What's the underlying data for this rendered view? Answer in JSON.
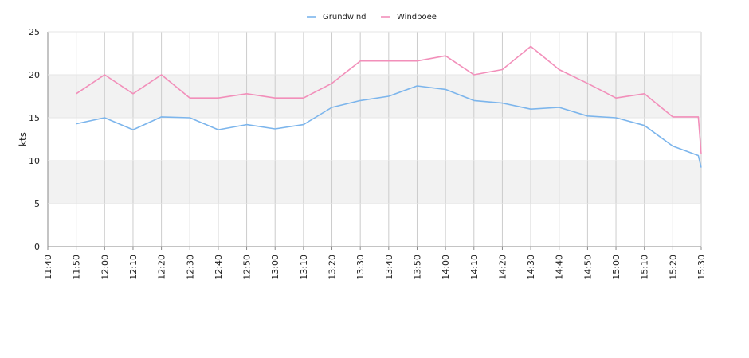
{
  "chart_data": {
    "type": "line",
    "title": "",
    "xlabel": "",
    "ylabel": "kts",
    "ylim": [
      0,
      25
    ],
    "yticks": [
      0,
      5,
      10,
      15,
      20,
      25
    ],
    "xlim": [
      "11:40",
      "15:30"
    ],
    "x_ticks": [
      "11:40",
      "11:50",
      "12:00",
      "12:10",
      "12:20",
      "12:30",
      "12:40",
      "12:50",
      "13:00",
      "13:10",
      "13:20",
      "13:30",
      "13:40",
      "13:50",
      "14:00",
      "14:10",
      "14:20",
      "14:30",
      "14:40",
      "14:50",
      "15:00",
      "15:10",
      "15:20",
      "15:30"
    ],
    "grid": true,
    "legend_position": "top-center",
    "series": [
      {
        "name": "Grundwind",
        "color": "#7cb5ec",
        "x": [
          "11:50",
          "12:00",
          "12:10",
          "12:20",
          "12:30",
          "12:40",
          "12:50",
          "13:00",
          "13:10",
          "13:20",
          "13:30",
          "13:40",
          "13:50",
          "14:00",
          "14:10",
          "14:20",
          "14:30",
          "14:40",
          "14:50",
          "15:00",
          "15:10",
          "15:20",
          "15:29",
          "15:30"
        ],
        "values": [
          14.3,
          15.0,
          13.6,
          15.1,
          15.0,
          13.6,
          14.2,
          13.7,
          14.2,
          16.2,
          17.0,
          17.5,
          18.7,
          18.3,
          17.0,
          16.7,
          16.0,
          16.2,
          15.2,
          15.0,
          14.1,
          11.7,
          10.6,
          9.2
        ]
      },
      {
        "name": "Windboee",
        "color": "#f28fba",
        "x": [
          "11:50",
          "12:00",
          "12:10",
          "12:20",
          "12:30",
          "12:40",
          "12:50",
          "13:00",
          "13:10",
          "13:20",
          "13:30",
          "13:40",
          "13:50",
          "14:00",
          "14:10",
          "14:20",
          "14:30",
          "14:40",
          "14:50",
          "15:00",
          "15:10",
          "15:20",
          "15:29",
          "15:30"
        ],
        "values": [
          17.8,
          20.0,
          17.8,
          20.0,
          17.3,
          17.3,
          17.8,
          17.3,
          17.3,
          19.0,
          21.6,
          21.6,
          21.6,
          22.2,
          20.0,
          20.6,
          23.3,
          20.6,
          19.0,
          17.3,
          17.8,
          15.1,
          15.1,
          10.8
        ]
      }
    ]
  }
}
